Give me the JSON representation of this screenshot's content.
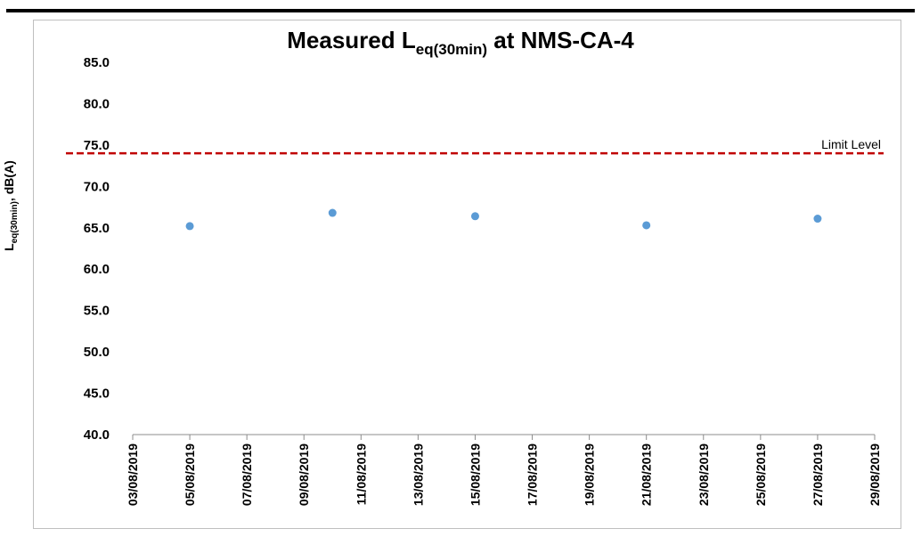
{
  "chart_data": {
    "type": "scatter",
    "title_main": "Measured L",
    "title_sub": "eq(30min)",
    "title_tail": " at NMS-CA-4",
    "ylabel_main": "L",
    "ylabel_sub": "eq(30min)",
    "ylabel_tail": ", dB(A)",
    "xlabel": "",
    "ylim": [
      40.0,
      85.0
    ],
    "y_ticks": [
      "40.0",
      "45.0",
      "50.0",
      "55.0",
      "60.0",
      "65.0",
      "70.0",
      "75.0",
      "80.0",
      "85.0"
    ],
    "x_range": [
      "03/08/2019",
      "29/08/2019"
    ],
    "x_ticks": [
      "03/08/2019",
      "05/08/2019",
      "07/08/2019",
      "09/08/2019",
      "11/08/2019",
      "13/08/2019",
      "15/08/2019",
      "17/08/2019",
      "19/08/2019",
      "21/08/2019",
      "23/08/2019",
      "25/08/2019",
      "27/08/2019",
      "29/08/2019"
    ],
    "grid": false,
    "series": [
      {
        "color": "#5b9bd5",
        "points": [
          {
            "x": "05/08/2019",
            "y": 65.2
          },
          {
            "x": "10/08/2019",
            "y": 66.8
          },
          {
            "x": "15/08/2019",
            "y": 66.4
          },
          {
            "x": "21/08/2019",
            "y": 65.3
          },
          {
            "x": "27/08/2019",
            "y": 66.1
          }
        ]
      }
    ],
    "limit_line": {
      "label": "Limit Level",
      "value": 74.0,
      "color": "#c00000",
      "style": "dashed"
    }
  }
}
